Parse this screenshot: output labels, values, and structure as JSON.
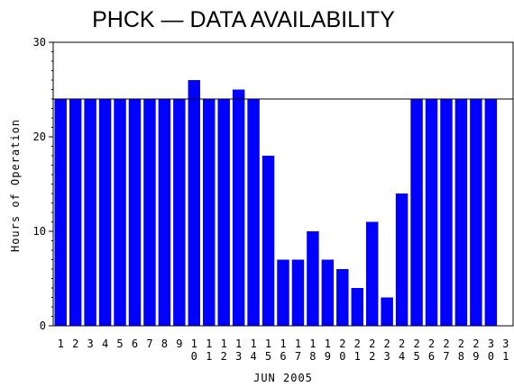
{
  "chart_data": {
    "type": "bar",
    "title": "PHCK — DATA AVAILABILITY",
    "xlabel": "JUN 2005",
    "ylabel": "Hours of Operation",
    "categories": [
      "1",
      "2",
      "3",
      "4",
      "5",
      "6",
      "7",
      "8",
      "9",
      "10",
      "11",
      "12",
      "13",
      "14",
      "15",
      "16",
      "17",
      "18",
      "19",
      "20",
      "21",
      "22",
      "23",
      "24",
      "25",
      "26",
      "27",
      "28",
      "29",
      "30",
      "31"
    ],
    "values": [
      24,
      24,
      24,
      24,
      24,
      24,
      24,
      24,
      24,
      26,
      24,
      24,
      25,
      24,
      18,
      7,
      7,
      10,
      7,
      6,
      4,
      11,
      3,
      14,
      24,
      24,
      24,
      24,
      24,
      24,
      null
    ],
    "ylim": [
      0,
      30
    ],
    "yticks": [
      0,
      10,
      20,
      30
    ],
    "reference_line": 24,
    "grid": false,
    "bar_color": "#0000ff"
  }
}
